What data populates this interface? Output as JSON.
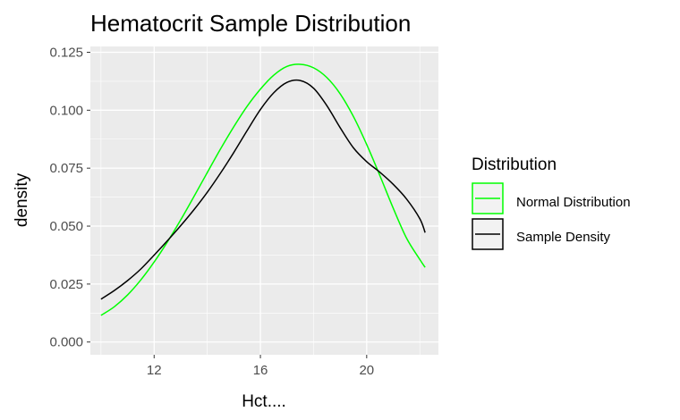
{
  "chart_data": {
    "type": "line",
    "title": "Hematocrit Sample Distribution",
    "xlabel": "Hct....",
    "ylabel": "density",
    "xlim": [
      9.6,
      22.7
    ],
    "ylim": [
      -0.0055,
      0.1275
    ],
    "x_ticks": [
      12,
      16,
      20
    ],
    "x_tick_labels": [
      "12",
      "16",
      "20"
    ],
    "y_ticks": [
      0,
      0.025,
      0.05,
      0.075,
      0.1,
      0.125
    ],
    "y_tick_labels": [
      "0.000",
      "0.025",
      "0.050",
      "0.075",
      "0.100",
      "0.125"
    ],
    "grid": true,
    "legend": {
      "title": "Distribution",
      "position": "right",
      "entries": [
        "Normal Distribution",
        "Sample Density"
      ]
    },
    "series": [
      {
        "name": "Normal Distribution",
        "color": "#00ff00",
        "x": [
          10,
          10.5,
          11,
          11.5,
          12,
          12.5,
          13,
          13.5,
          14,
          14.5,
          15,
          15.5,
          16,
          16.5,
          17,
          17.5,
          18,
          18.5,
          19,
          19.5,
          20,
          20.5,
          21,
          21.5,
          22,
          22.2
        ],
        "y": [
          0.0115,
          0.0152,
          0.0203,
          0.0268,
          0.0345,
          0.0432,
          0.0527,
          0.0628,
          0.0731,
          0.0833,
          0.0929,
          0.1017,
          0.1091,
          0.1151,
          0.1189,
          0.1198,
          0.1183,
          0.1141,
          0.1071,
          0.0973,
          0.0852,
          0.0717,
          0.0577,
          0.0448,
          0.0356,
          0.0322
        ]
      },
      {
        "name": "Sample Density",
        "color": "#000000",
        "x": [
          10,
          10.5,
          11,
          11.5,
          12,
          12.5,
          13,
          13.5,
          14,
          14.5,
          15,
          15.5,
          16,
          16.5,
          17,
          17.5,
          18,
          18.5,
          19,
          19.5,
          20,
          20.5,
          21,
          21.5,
          22,
          22.2
        ],
        "y": [
          0.0185,
          0.0222,
          0.0265,
          0.0315,
          0.0375,
          0.0437,
          0.0502,
          0.0571,
          0.0646,
          0.0729,
          0.0818,
          0.0912,
          0.1003,
          0.1075,
          0.112,
          0.1128,
          0.1095,
          0.102,
          0.0925,
          0.0838,
          0.0778,
          0.0732,
          0.068,
          0.0617,
          0.0532,
          0.0472
        ]
      }
    ]
  }
}
